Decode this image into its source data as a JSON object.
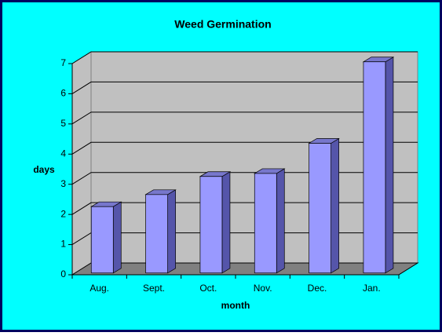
{
  "chart_data": {
    "type": "bar3d",
    "title": "Weed Germination",
    "x_label": "month",
    "y_label": "days",
    "categories": [
      "Aug.",
      "Sept.",
      "Oct.",
      "Nov.",
      "Dec.",
      "Jan."
    ],
    "values": [
      2.2,
      2.6,
      3.2,
      3.3,
      4.3,
      7.0
    ],
    "color": "#9999ff",
    "ylim": [
      0,
      7
    ],
    "yticks": [
      0,
      1,
      2,
      3,
      4,
      5,
      6,
      7
    ],
    "grid": true
  }
}
